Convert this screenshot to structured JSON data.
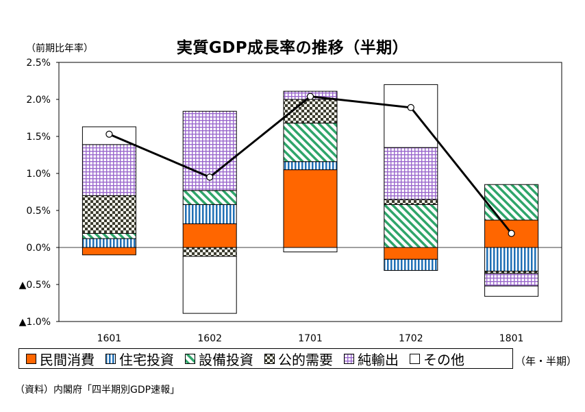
{
  "chart_data": {
    "type": "bar",
    "stacked": true,
    "title": "実質GDP成長率の推移（半期）",
    "ylabel": "（前期比年率）",
    "xlabel": "（年・半期）",
    "source": "（資料）内閣府「四半期別GDP速報」",
    "categories": [
      "1601",
      "1602",
      "1701",
      "1702",
      "1801"
    ],
    "ylim": [
      -1.0,
      2.5
    ],
    "yticks": [
      2.5,
      2.0,
      1.5,
      1.0,
      0.5,
      0.0,
      -0.5,
      -1.0
    ],
    "ytick_labels": [
      "2.5%",
      "2.0%",
      "1.5%",
      "1.0%",
      "0.5%",
      "0.0%",
      "▲0.5%",
      "▲1.0%"
    ],
    "grid": false,
    "legend_position": "bottom",
    "series": [
      {
        "name": "民間消費",
        "pattern": "solid-orange",
        "values": [
          -0.1,
          0.32,
          1.05,
          -0.16,
          0.37
        ]
      },
      {
        "name": "住宅投資",
        "pattern": "blue-vertical",
        "values": [
          0.12,
          0.26,
          0.11,
          -0.15,
          -0.32
        ]
      },
      {
        "name": "設備投資",
        "pattern": "green-diagonal",
        "values": [
          0.07,
          0.19,
          0.52,
          0.58,
          0.48
        ]
      },
      {
        "name": "公的需要",
        "pattern": "checker",
        "values": [
          0.51,
          -0.12,
          0.32,
          0.07,
          -0.03
        ]
      },
      {
        "name": "純輸出",
        "pattern": "purple-grid",
        "values": [
          0.69,
          1.07,
          0.11,
          0.7,
          -0.17
        ]
      },
      {
        "name": "その他",
        "pattern": "white",
        "values": [
          0.24,
          -0.77,
          -0.06,
          0.85,
          -0.14
        ]
      }
    ],
    "line": {
      "name": "実質GDP成長率",
      "values": [
        1.53,
        0.95,
        2.04,
        1.89,
        0.19
      ]
    }
  },
  "colors": {
    "orange": "#ff6600",
    "blue": "#1f6fb5",
    "green": "#2fa56a",
    "purple": "#9966cc",
    "checker": "#3b3b2f",
    "line": "#000000"
  }
}
